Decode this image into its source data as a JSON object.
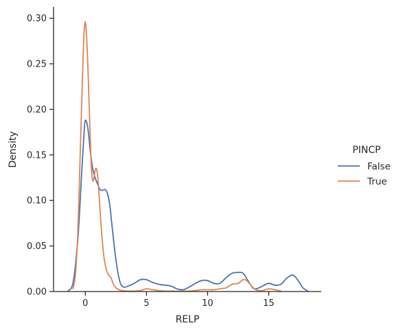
{
  "chart_data": {
    "type": "line",
    "title": "",
    "xlabel": "RELP",
    "ylabel": "Density",
    "xlim": [
      -2.6,
      19.3
    ],
    "ylim": [
      0,
      0.3125
    ],
    "x_ticks": [
      0,
      5,
      10,
      15
    ],
    "y_ticks": [
      0.0,
      0.05,
      0.1,
      0.15,
      0.2,
      0.25,
      0.3
    ],
    "y_tick_labels": [
      "0.00",
      "0.05",
      "0.10",
      "0.15",
      "0.20",
      "0.25",
      "0.30"
    ],
    "grid": false,
    "legend": {
      "title": "PINCP",
      "position": "right"
    },
    "series": [
      {
        "name": "False",
        "color": "#4c72b0",
        "x": [
          -1.4,
          -1.0,
          -0.6,
          -0.3,
          -0.1,
          0.0,
          0.2,
          0.4,
          0.6,
          0.8,
          1.0,
          1.2,
          1.4,
          1.6,
          1.8,
          2.0,
          2.2,
          2.5,
          2.8,
          3.1,
          3.5,
          4.0,
          4.5,
          5.0,
          5.5,
          6.0,
          6.5,
          7.0,
          7.5,
          8.0,
          8.5,
          9.0,
          9.5,
          10.0,
          10.5,
          11.0,
          11.5,
          12.0,
          12.5,
          12.9,
          13.3,
          13.7,
          14.0,
          14.5,
          15.0,
          15.5,
          16.0,
          16.5,
          17.0,
          17.4,
          17.8,
          18.2
        ],
        "y": [
          0.001,
          0.01,
          0.06,
          0.13,
          0.175,
          0.188,
          0.18,
          0.155,
          0.135,
          0.125,
          0.118,
          0.112,
          0.111,
          0.112,
          0.108,
          0.095,
          0.07,
          0.035,
          0.012,
          0.005,
          0.006,
          0.009,
          0.013,
          0.013,
          0.01,
          0.008,
          0.007,
          0.006,
          0.003,
          0.002,
          0.005,
          0.009,
          0.012,
          0.012,
          0.009,
          0.009,
          0.015,
          0.02,
          0.021,
          0.02,
          0.012,
          0.004,
          0.003,
          0.006,
          0.009,
          0.007,
          0.008,
          0.015,
          0.018,
          0.012,
          0.004,
          0.0005
        ]
      },
      {
        "name": "True",
        "color": "#dd8452",
        "x": [
          -1.0,
          -0.8,
          -0.6,
          -0.4,
          -0.2,
          -0.1,
          0.0,
          0.1,
          0.2,
          0.3,
          0.4,
          0.5,
          0.6,
          0.7,
          0.8,
          0.9,
          1.0,
          1.1,
          1.2,
          1.3,
          1.5,
          1.7,
          1.9,
          2.1,
          2.3,
          2.6,
          3.0,
          3.5,
          4.0,
          4.5,
          5.0,
          5.5,
          6.0,
          6.5,
          7.0,
          7.5,
          8.0,
          8.5,
          9.0,
          9.5,
          10.0,
          10.5,
          11.0,
          11.5,
          12.0,
          12.5,
          12.9,
          13.2,
          13.6,
          14.0,
          14.5,
          15.0,
          15.5,
          16.0
        ],
        "y": [
          0.003,
          0.02,
          0.07,
          0.16,
          0.25,
          0.285,
          0.296,
          0.28,
          0.25,
          0.21,
          0.17,
          0.135,
          0.122,
          0.124,
          0.133,
          0.135,
          0.128,
          0.11,
          0.09,
          0.07,
          0.04,
          0.025,
          0.018,
          0.015,
          0.008,
          0.003,
          0.001,
          0.0005,
          0.0005,
          0.001,
          0.003,
          0.002,
          0.001,
          0.0005,
          0.0005,
          0.0005,
          0.0005,
          0.0005,
          0.001,
          0.002,
          0.002,
          0.002,
          0.003,
          0.004,
          0.008,
          0.009,
          0.013,
          0.012,
          0.006,
          0.0015,
          0.001,
          0.003,
          0.002,
          0.0005
        ]
      }
    ]
  }
}
